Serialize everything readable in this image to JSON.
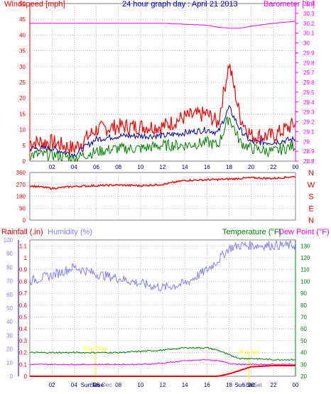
{
  "title": "24 hour graph day : April 21 2013",
  "x_ticks": [
    "02",
    "04",
    "06",
    "08",
    "10",
    "12",
    "14",
    "16",
    "18",
    "20",
    "22",
    "00"
  ],
  "colors": {
    "wind_axis": "#ff0000",
    "baro": "#ff00ff",
    "wind_gust": "#ff0000",
    "wind_avg": "#0000a0",
    "wind_low": "#008000",
    "dir": "#ff0000",
    "rain": "#ff0000",
    "humidity": "#8080ff",
    "temperature": "#008000",
    "dew": "#ff00ff",
    "grid": "#808080",
    "frame": "#000000",
    "humidity_axis": "#8080ff",
    "temp_axis": "#008000",
    "sun": "#ffff00"
  },
  "panel1": {
    "left_label": "Windspeed [mph]",
    "right_label": "Barometer [ in]",
    "left_ticks": [
      "0",
      "5",
      "10",
      "15",
      "20",
      "25",
      "30",
      "35",
      "40",
      "45",
      "50"
    ],
    "right_ticks": [
      "28.8",
      "28.9",
      "29",
      "29.1",
      "29.2",
      "29.3",
      "29.4",
      "29.5",
      "29.6",
      "29.7",
      "29.8",
      "29.9",
      "30",
      "30.1",
      "30.2",
      "30.3",
      "30.4"
    ]
  },
  "panel2": {
    "left_ticks": [
      "0",
      "90",
      "180",
      "270",
      "360"
    ],
    "compass": [
      "N",
      "W",
      "S",
      "E",
      "N"
    ]
  },
  "panel3": {
    "rain_label": "Rainfall (.in)",
    "hum_label": "Humidity (%)",
    "temp_label": "Temperature (°F)",
    "dew_label": "Dew Point (°F)",
    "rain_ticks": [
      "0",
      "0.1",
      "0.2",
      "0.3",
      "0.4",
      "0.5",
      "0.6",
      "0.7",
      "0.8",
      "0.9",
      "1",
      "1.1"
    ],
    "hum_ticks": [
      "0",
      "10",
      "20",
      "30",
      "40",
      "50",
      "60",
      "70",
      "80",
      "90",
      "100"
    ],
    "temp_ticks": [
      "20",
      "30",
      "40",
      "50",
      "60",
      "70",
      "80",
      "90",
      "100",
      "110",
      "120",
      "130"
    ],
    "sun_labels": [
      "Sun Rise",
      "Sun Set"
    ],
    "markers_a": [
      "Sun Rise",
      "Sun Dec"
    ],
    "markers_b": [
      "Sun Set",
      "Sun Set"
    ]
  },
  "chart_data": [
    {
      "type": "line",
      "x": [
        0,
        2,
        4,
        6,
        8,
        10,
        12,
        14,
        16,
        17,
        18,
        19,
        20,
        22,
        24
      ],
      "x_unit": "hour",
      "ylim_left": [
        0,
        50
      ],
      "ylim_right": [
        28.8,
        30.4
      ],
      "series": [
        {
          "axis": "left",
          "values": [
            6,
            6,
            4,
            10,
            11,
            11,
            11,
            14,
            15,
            12,
            31,
            14,
            8,
            8,
            12
          ]
        },
        {
          "axis": "left",
          "values": [
            4,
            4,
            2,
            7,
            8,
            8,
            8,
            9,
            10,
            9,
            17,
            10,
            6,
            6,
            7
          ]
        },
        {
          "axis": "left",
          "values": [
            2,
            2,
            1,
            3,
            4,
            4,
            5,
            5,
            6,
            5,
            14,
            6,
            4,
            3,
            5
          ]
        },
        {
          "axis": "right",
          "values": [
            30.2,
            30.2,
            30.2,
            30.2,
            30.2,
            30.2,
            30.2,
            30.19,
            30.18,
            30.16,
            30.15,
            30.15,
            30.17,
            30.2,
            30.22
          ]
        }
      ]
    },
    {
      "type": "line",
      "x": [
        0,
        2,
        4,
        6,
        8,
        10,
        12,
        14,
        16,
        18,
        20,
        22,
        24
      ],
      "x_unit": "hour",
      "ylim": [
        0,
        360
      ],
      "series": [
        {
          "values": [
            260,
            240,
            255,
            260,
            265,
            260,
            270,
            300,
            305,
            310,
            320,
            315,
            330
          ]
        }
      ]
    },
    {
      "type": "line",
      "x": [
        0,
        2,
        4,
        6,
        8,
        10,
        12,
        14,
        16,
        17,
        18,
        19,
        20,
        22,
        24
      ],
      "x_unit": "hour",
      "ylim_rain": [
        0,
        1.15
      ],
      "ylim_humidity": [
        0,
        100
      ],
      "ylim_temp": [
        20,
        135
      ],
      "series": [
        {
          "axis": "rain",
          "values": [
            0,
            0,
            0,
            0,
            0,
            0,
            0,
            0,
            0,
            0,
            0.02,
            0.05,
            0.08,
            0.09,
            0.09
          ]
        },
        {
          "axis": "humidity",
          "values": [
            70,
            74,
            80,
            75,
            72,
            68,
            65,
            68,
            78,
            85,
            94,
            96,
            96,
            96,
            96
          ]
        },
        {
          "axis": "temp",
          "values": [
            40,
            40,
            40,
            40,
            40,
            41,
            42,
            44,
            44,
            42,
            38,
            35,
            35,
            34,
            34
          ]
        },
        {
          "axis": "temp",
          "values": [
            30,
            30,
            30,
            30,
            30,
            30,
            31,
            33,
            34,
            33,
            31,
            30,
            30,
            30,
            30
          ]
        }
      ],
      "sun_rise_hour": 5.9,
      "sun_set_hour": 19.8
    }
  ]
}
